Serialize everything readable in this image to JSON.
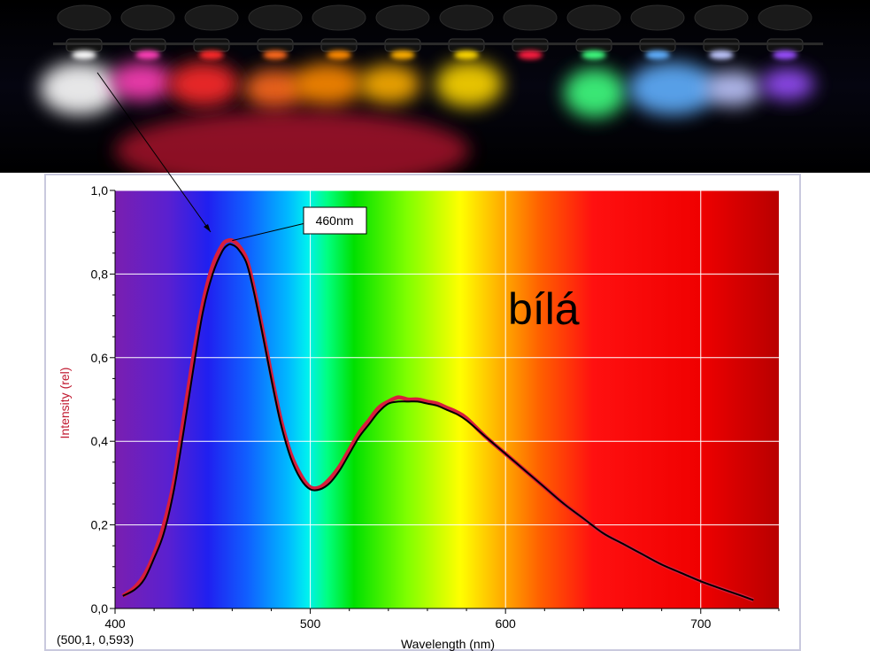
{
  "colors": {
    "red_curve": "#d81e3c",
    "black_curve": "#000000",
    "ylabel": "#c0182f",
    "panel_border": "#c9c9de",
    "grid": "#ffffff"
  },
  "photo": {
    "description_icon": "led-photo",
    "leds": [
      {
        "color": "#ffffff"
      },
      {
        "color": "#ff3fb8"
      },
      {
        "color": "#ff2a2a"
      },
      {
        "color": "#ff6a1a"
      },
      {
        "color": "#ff8a00"
      },
      {
        "color": "#ffb000"
      },
      {
        "color": "#ffd800"
      },
      {
        "color": "#ff1f3f"
      },
      {
        "color": "#40ff80"
      },
      {
        "color": "#60b0ff"
      },
      {
        "color": "#c0c8ff"
      },
      {
        "color": "#9a50ff"
      }
    ]
  },
  "chart_data": {
    "type": "line",
    "xlabel": "Wavelength (nm)",
    "ylabel": "Intensity (rel)",
    "xlim": [
      400,
      740
    ],
    "ylim": [
      0,
      1
    ],
    "x_ticks": [
      400,
      500,
      600,
      700
    ],
    "y_ticks": [
      0,
      0.2,
      0.4,
      0.6,
      0.8,
      1.0
    ],
    "x_tick_labels": [
      "400",
      "500",
      "600",
      "700"
    ],
    "y_tick_labels": [
      "0,0",
      "0,2",
      "0,4",
      "0,6",
      "0,8",
      "1,0"
    ],
    "grid": true,
    "background": "visible-spectrum",
    "series": [
      {
        "color": "#d81e3c",
        "x": [
          404,
          410,
          415,
          420,
          425,
          430,
          435,
          440,
          445,
          450,
          455,
          458,
          460,
          463,
          467,
          470,
          475,
          480,
          485,
          490,
          495,
          500,
          505,
          510,
          515,
          520,
          525,
          530,
          535,
          540,
          545,
          550,
          555,
          560,
          565,
          570,
          575,
          580,
          590,
          600,
          610,
          620,
          630,
          640,
          650,
          660,
          670,
          680,
          690,
          700,
          710,
          720,
          727
        ],
        "y": [
          0.03,
          0.05,
          0.08,
          0.13,
          0.2,
          0.3,
          0.45,
          0.6,
          0.73,
          0.82,
          0.87,
          0.88,
          0.88,
          0.87,
          0.84,
          0.79,
          0.68,
          0.56,
          0.45,
          0.37,
          0.32,
          0.29,
          0.29,
          0.31,
          0.34,
          0.38,
          0.42,
          0.45,
          0.48,
          0.495,
          0.505,
          0.5,
          0.5,
          0.495,
          0.49,
          0.48,
          0.47,
          0.455,
          0.41,
          0.37,
          0.33,
          0.29,
          0.25,
          0.215,
          0.18,
          0.155,
          0.13,
          0.105,
          0.085,
          0.065,
          0.048,
          0.032,
          0.02
        ]
      },
      {
        "color": "#000000",
        "x": [
          404,
          410,
          415,
          420,
          425,
          430,
          435,
          440,
          445,
          450,
          455,
          458,
          460,
          463,
          467,
          470,
          475,
          480,
          485,
          490,
          495,
          500,
          505,
          510,
          515,
          520,
          525,
          530,
          535,
          540,
          545,
          550,
          555,
          560,
          565,
          570,
          575,
          580,
          590,
          600,
          610,
          620,
          630,
          640,
          650,
          660,
          670,
          680,
          690,
          700,
          710,
          720,
          727
        ],
        "y": [
          0.03,
          0.045,
          0.07,
          0.12,
          0.18,
          0.28,
          0.42,
          0.57,
          0.71,
          0.8,
          0.855,
          0.87,
          0.87,
          0.86,
          0.83,
          0.78,
          0.67,
          0.55,
          0.44,
          0.36,
          0.31,
          0.285,
          0.285,
          0.3,
          0.33,
          0.37,
          0.41,
          0.44,
          0.47,
          0.49,
          0.495,
          0.495,
          0.495,
          0.49,
          0.485,
          0.475,
          0.465,
          0.45,
          0.41,
          0.37,
          0.33,
          0.29,
          0.25,
          0.215,
          0.18,
          0.155,
          0.13,
          0.105,
          0.085,
          0.065,
          0.048,
          0.032,
          0.02
        ]
      }
    ],
    "annotations": {
      "peak_label": "460nm",
      "peak_x": 460,
      "peak_y": 0.88,
      "big_text": "bílá",
      "cursor_readout": "(500,1, 0,593)"
    }
  }
}
